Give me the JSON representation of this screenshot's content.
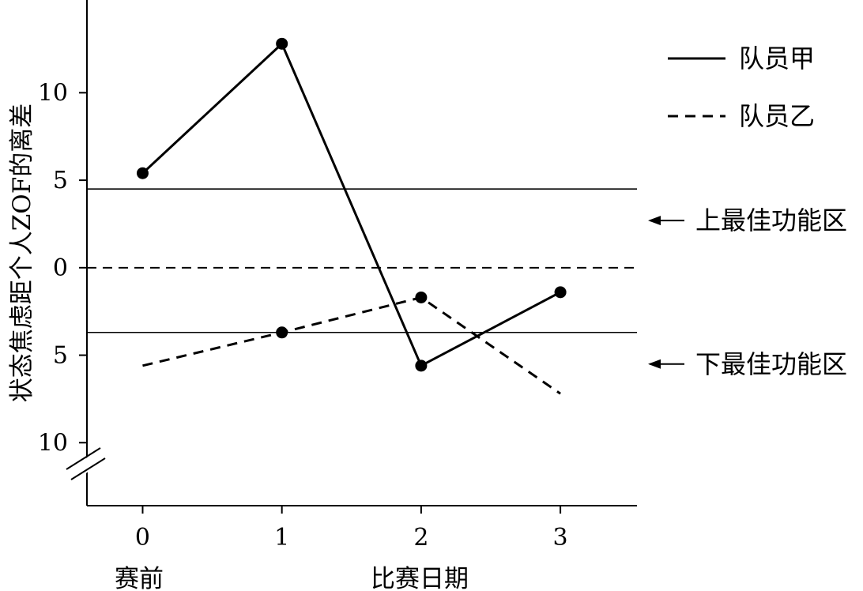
{
  "chart_data": {
    "type": "line",
    "title": "",
    "xlabel": "比赛日期",
    "ylabel": "状态焦虑距个人ZOF的离差",
    "x": [
      0,
      1,
      2,
      3
    ],
    "x_tick_labels": [
      "0",
      "1",
      "2",
      "3"
    ],
    "x_start_label": "赛前",
    "xlim": [
      -0.4,
      3.55
    ],
    "ylim": [
      -13.6,
      15.3
    ],
    "y_tick_values": [
      10,
      5,
      0,
      -5,
      -10
    ],
    "y_tick_labels": [
      "10",
      "5",
      "0",
      "5",
      "10"
    ],
    "axis_break": true,
    "grid": false,
    "legend_position": "top-right",
    "series": [
      {
        "name": "队员甲",
        "line_style": "solid",
        "color": "#000000",
        "markers": true,
        "values": [
          5.4,
          12.8,
          -5.6,
          -1.4
        ],
        "marker_mask": [
          true,
          true,
          true,
          true
        ]
      },
      {
        "name": "队员乙",
        "line_style": "dashed",
        "color": "#000000",
        "markers": true,
        "values": [
          -5.6,
          -3.7,
          -1.7,
          -7.2
        ],
        "marker_mask": [
          false,
          true,
          true,
          false
        ]
      }
    ],
    "reference_lines": [
      {
        "y": 4.5,
        "style": "solid",
        "label": "上最佳功能区"
      },
      {
        "y": 0,
        "style": "dashed",
        "label": ""
      },
      {
        "y": -3.7,
        "style": "solid",
        "label": "下最佳功能区"
      }
    ]
  }
}
